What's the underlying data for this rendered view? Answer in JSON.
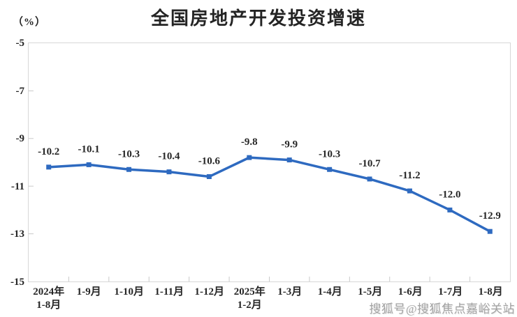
{
  "chart": {
    "title": "全国房地产开发投资增速",
    "unit_label": "（%）",
    "watermark": "搜狐号@搜狐焦点嘉峪关站"
  },
  "chart_data": {
    "type": "line",
    "title": "全国房地产开发投资增速",
    "ylabel": "（%）",
    "categories": [
      [
        "2024年",
        "1-8月"
      ],
      [
        "1-9月"
      ],
      [
        "1-10月"
      ],
      [
        "1-11月"
      ],
      [
        "1-12月"
      ],
      [
        "2025年",
        "1-2月"
      ],
      [
        "1-3月"
      ],
      [
        "1-4月"
      ],
      [
        "1-5月"
      ],
      [
        "1-6月"
      ],
      [
        "1-7月"
      ],
      [
        "1-8月"
      ]
    ],
    "values": [
      -10.2,
      -10.1,
      -10.3,
      -10.4,
      -10.6,
      -9.8,
      -9.9,
      -10.3,
      -10.7,
      -11.2,
      -12.0,
      -12.9
    ],
    "data_labels": [
      "-10.2",
      "-10.1",
      "-10.3",
      "-10.4",
      "-10.6",
      "-9.8",
      "-9.9",
      "-10.3",
      "-10.7",
      "-11.2",
      "-12.0",
      "-12.9"
    ],
    "ylim": [
      -15,
      -5
    ],
    "yticks": [
      -5,
      -7,
      -9,
      -11,
      -13,
      -15
    ],
    "ytick_labels": [
      "-5",
      "-7",
      "-9",
      "-11",
      "-13",
      "-15"
    ],
    "grid": false,
    "legend": "none",
    "line_color": "#2e6ac0",
    "marker": "square",
    "marker_size": 7,
    "line_width": 3.5
  }
}
